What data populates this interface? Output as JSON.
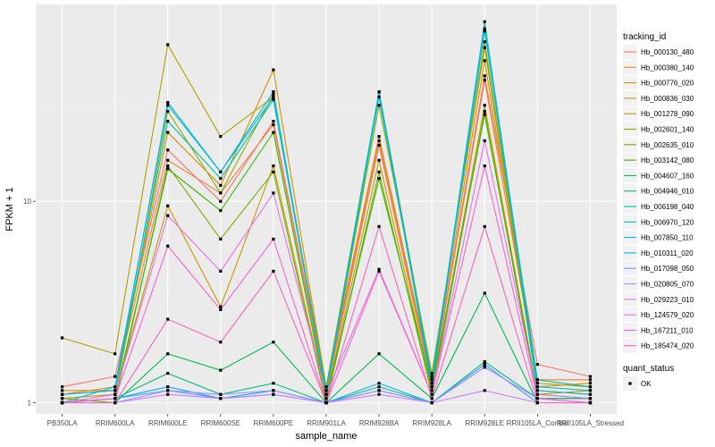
{
  "chart_data": {
    "type": "line",
    "xlabel": "sample_name",
    "ylabel": "FPKM + 1",
    "y_scale": "log10",
    "ylim": [
      0.88,
      95
    ],
    "y_ticks": [
      {
        "value": 1,
        "label": "1"
      },
      {
        "value": 10,
        "label": "10"
      }
    ],
    "grid": true,
    "legend_position": "right",
    "categories": [
      "PB350LA",
      "RRIM600LA",
      "RRIM600LE",
      "RRIM600SE",
      "RRIM600PE",
      "RRIM901LA",
      "RRIM928BA",
      "RRIM928LA",
      "RRIM928LE",
      "RRII105LA_Control",
      "RRII105LA_Stressed"
    ],
    "legend": {
      "title": "tracking_id",
      "quant_title": "quant_status",
      "quant_entries": [
        "OK"
      ]
    },
    "series": [
      {
        "name": "Hb_000130_480",
        "color": "#F8766D",
        "values": [
          1.2,
          1.35,
          18,
          10,
          25,
          1.15,
          20,
          1.25,
          42,
          1.55,
          1.35
        ]
      },
      {
        "name": "Hb_000380_140",
        "color": "#EC8239",
        "values": [
          1.1,
          1.2,
          16,
          11,
          24,
          1.1,
          19,
          1.2,
          40,
          1.3,
          1.3
        ]
      },
      {
        "name": "Hb_000776_020",
        "color": "#DB8E00",
        "values": [
          1.15,
          1.15,
          22,
          12,
          45,
          1.2,
          21,
          1.3,
          50,
          1.2,
          1.25
        ]
      },
      {
        "name": "Hb_000836_030",
        "color": "#C79800",
        "values": [
          1.05,
          1.1,
          9.5,
          3,
          15,
          1.05,
          16,
          1.15,
          30,
          1.1,
          1.15
        ]
      },
      {
        "name": "Hb_001278_090",
        "color": "#AFA100",
        "values": [
          2.1,
          1.75,
          60,
          21,
          33,
          1.2,
          35,
          1.35,
          62,
          1.25,
          1.2
        ]
      },
      {
        "name": "Hb_002601_140",
        "color": "#96A900",
        "values": [
          1.0,
          1.05,
          28,
          11,
          34,
          1.1,
          30,
          1.4,
          58,
          1.15,
          1.1
        ]
      },
      {
        "name": "Hb_002635_010",
        "color": "#72B000",
        "values": [
          1.05,
          1.0,
          15,
          6.5,
          14,
          1.0,
          14,
          1.1,
          28,
          1.05,
          1.05
        ]
      },
      {
        "name": "Hb_003142_080",
        "color": "#39B600",
        "values": [
          1.0,
          1.05,
          14.5,
          9,
          22,
          1.05,
          13,
          1.2,
          27,
          1.1,
          1.05
        ]
      },
      {
        "name": "Hb_004607_160",
        "color": "#00BB4E",
        "values": [
          1.0,
          1.0,
          1.75,
          1.45,
          2.0,
          1.0,
          1.75,
          1.05,
          3.5,
          1.0,
          1.0
        ]
      },
      {
        "name": "Hb_004946_010",
        "color": "#00BF7D",
        "values": [
          1.0,
          1.05,
          1.4,
          1.1,
          1.25,
          1.0,
          1.2,
          1.0,
          1.6,
          1.05,
          1.05
        ]
      },
      {
        "name": "Hb_006198_040",
        "color": "#00C1A3",
        "values": [
          1.1,
          1.15,
          25,
          13,
          32,
          1.15,
          35,
          1.3,
          70,
          1.3,
          1.2
        ]
      },
      {
        "name": "Hb_006970_120",
        "color": "#00BFC4",
        "values": [
          1.0,
          1.2,
          30,
          14,
          35,
          1.1,
          33,
          1.25,
          78,
          1.2,
          1.15
        ]
      },
      {
        "name": "Hb_007850_110",
        "color": "#00B8E5",
        "values": [
          1.1,
          1.15,
          31,
          14,
          33,
          1.1,
          35,
          1.2,
          72,
          1.15,
          1.1
        ]
      },
      {
        "name": "Hb_010311_020",
        "color": "#00ADFA",
        "values": [
          1.0,
          1.05,
          1.2,
          1.05,
          1.15,
          1.0,
          1.25,
          1.0,
          1.55,
          1.0,
          1.0
        ]
      },
      {
        "name": "Hb_017098_050",
        "color": "#619CFF",
        "values": [
          1.0,
          1.05,
          1.15,
          1.05,
          1.1,
          1.0,
          1.15,
          1.0,
          1.55,
          1.0,
          1.0
        ]
      },
      {
        "name": "Hb_020805_070",
        "color": "#9E8EFF",
        "values": [
          1.0,
          1.0,
          1.15,
          1.1,
          1.15,
          1.0,
          1.15,
          1.0,
          1.5,
          1.05,
          1.0
        ]
      },
      {
        "name": "Hb_029223_010",
        "color": "#CA7FFF",
        "values": [
          1.0,
          1.0,
          1.1,
          1.05,
          1.1,
          1.0,
          1.1,
          1.0,
          1.15,
          1.0,
          1.0
        ]
      },
      {
        "name": "Hb_124579_020",
        "color": "#EA70EA",
        "values": [
          1.0,
          1.1,
          8.5,
          4.5,
          11,
          1.1,
          4.6,
          1.1,
          20,
          1.1,
          1.05
        ]
      },
      {
        "name": "Hb_167211_010",
        "color": "#FD61D1",
        "values": [
          1.0,
          1.05,
          6,
          2.9,
          6.5,
          1.0,
          4.5,
          1.1,
          15,
          1.05,
          1.0
        ]
      },
      {
        "name": "Hb_185474_020",
        "color": "#FF62BC",
        "values": [
          1.0,
          1.0,
          2.6,
          2.0,
          4.5,
          1.0,
          7.5,
          1.05,
          7.5,
          1.0,
          1.0
        ]
      }
    ]
  }
}
